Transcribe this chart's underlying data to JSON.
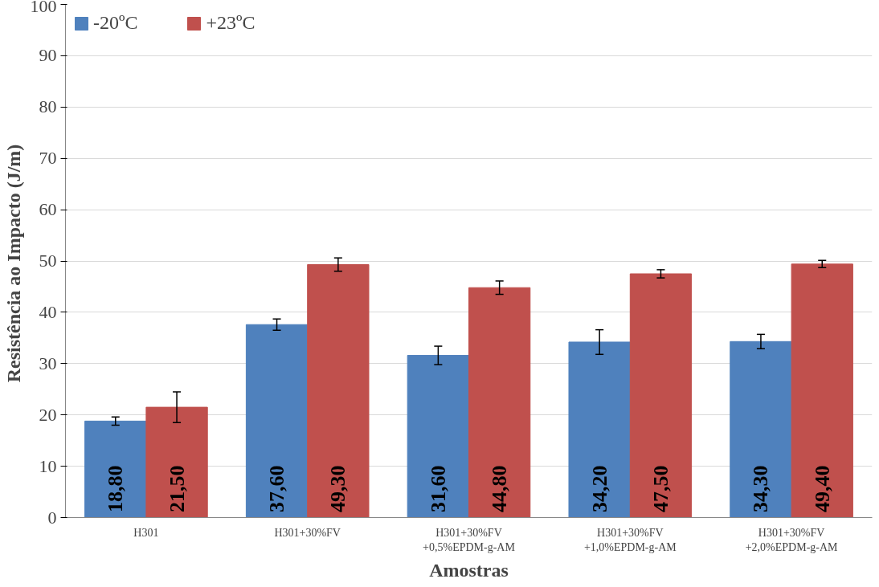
{
  "chart_data": {
    "type": "bar",
    "xlabel": "Amostras",
    "ylabel": "Resistência  ao Impacto (J/m)",
    "categories": [
      "H301",
      "H301+30%FV",
      "H301+30%FV\n+0,5%EPDM-g-AM",
      "H301+30%FV\n+1,0%EPDM-g-AM",
      "H301+30%FV\n+2,0%EPDM-g-AM"
    ],
    "series": [
      {
        "name": "-20ºC",
        "color": "#4f81bd",
        "values": [
          18.8,
          37.6,
          31.6,
          34.2,
          34.3
        ],
        "errors": [
          0.8,
          1.1,
          1.8,
          2.4,
          1.4
        ],
        "value_labels": [
          "18,80",
          "37,60",
          "31,60",
          "34,20",
          "34,30"
        ]
      },
      {
        "name": "+23ºC",
        "color": "#c0504d",
        "values": [
          21.5,
          49.3,
          44.8,
          47.5,
          49.4
        ],
        "errors": [
          3.0,
          1.3,
          1.3,
          0.8,
          0.7
        ],
        "value_labels": [
          "21,50",
          "49,30",
          "44,80",
          "47,50",
          "49,40"
        ]
      }
    ],
    "ylim": [
      0,
      100
    ],
    "yticks": [
      0,
      10,
      20,
      30,
      40,
      50,
      60,
      70,
      80,
      90,
      100
    ],
    "grid": "y",
    "legend": "top left"
  }
}
